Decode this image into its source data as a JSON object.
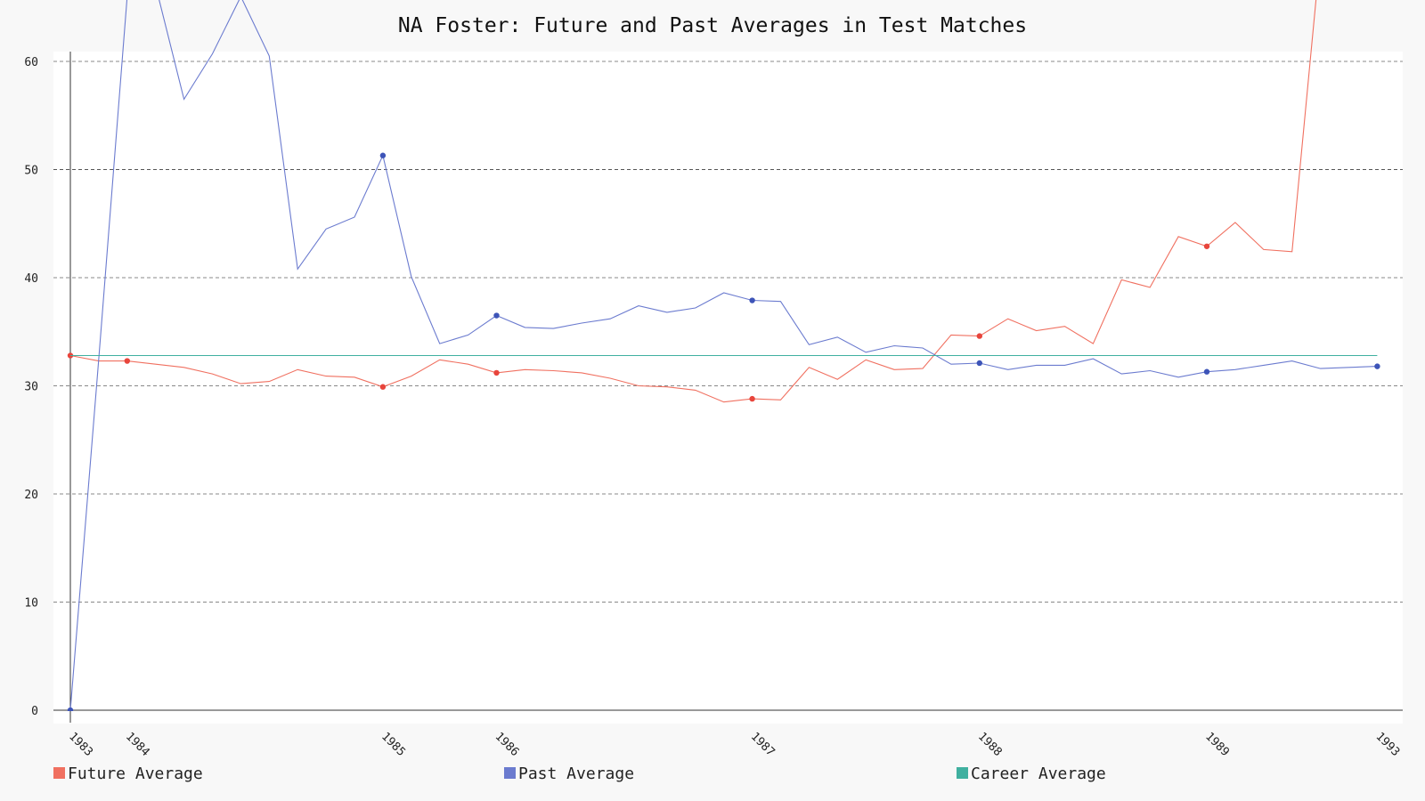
{
  "chart_data": {
    "type": "line",
    "title": "NA Foster: Future and Past Averages in Test Matches",
    "xlabel": "",
    "ylabel": "",
    "ylim": [
      0,
      60
    ],
    "yticks": [
      0,
      10,
      20,
      30,
      40,
      50,
      60
    ],
    "grid": true,
    "legend_position": "bottom",
    "x_tick_labels": [
      "1983",
      "1984",
      "1985",
      "1986",
      "1987",
      "1988",
      "1989",
      "1993"
    ],
    "x_tick_index": [
      0,
      2,
      11,
      15,
      24,
      32,
      40,
      46
    ],
    "series": [
      {
        "name": "Future Average",
        "color": "#f07060",
        "values": [
          32.8,
          32.3,
          32.3,
          32.0,
          31.7,
          31.1,
          30.2,
          30.4,
          31.5,
          30.9,
          30.8,
          29.9,
          30.9,
          32.4,
          32.0,
          31.2,
          31.5,
          31.4,
          31.2,
          30.7,
          30.0,
          29.9,
          29.6,
          28.5,
          28.8,
          28.7,
          31.7,
          30.6,
          32.4,
          31.5,
          31.6,
          34.7,
          34.6,
          36.2,
          35.1,
          35.5,
          33.9,
          39.8,
          39.1,
          43.8,
          42.9,
          45.1,
          42.6,
          42.4,
          70.0
        ],
        "markers": [
          0,
          2,
          11,
          15,
          24,
          32,
          40
        ]
      },
      {
        "name": "Past Average",
        "color": "#6b7bcf",
        "values": [
          0.0,
          32.5,
          66.0,
          67.0,
          56.5,
          60.7,
          66.0,
          60.5,
          40.8,
          44.5,
          45.6,
          51.3,
          40.1,
          33.9,
          34.7,
          36.5,
          35.4,
          35.3,
          35.8,
          36.2,
          37.4,
          36.8,
          37.2,
          38.6,
          37.9,
          37.8,
          33.8,
          34.5,
          33.1,
          33.7,
          33.5,
          32.0,
          32.1,
          31.5,
          31.9,
          31.9,
          32.5,
          31.1,
          31.4,
          30.8,
          31.3,
          31.5,
          31.9,
          32.3,
          31.6,
          31.7,
          31.8
        ],
        "markers": [
          0,
          11,
          15,
          24,
          32,
          40,
          46
        ]
      },
      {
        "name": "Career Average",
        "color": "#40b0a0",
        "values": [
          32.8,
          32.8
        ],
        "x_span": [
          0,
          46
        ]
      }
    ]
  }
}
